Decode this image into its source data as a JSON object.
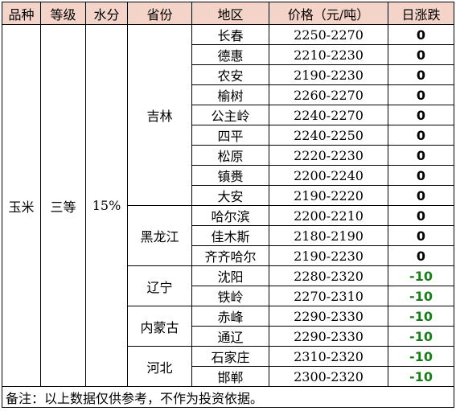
{
  "headers": [
    "品种",
    "等级",
    "水分",
    "省份",
    "地区",
    "价格（元/吨）",
    "日涨跌"
  ],
  "variety": "玉米",
  "grade": "三等",
  "moisture": "15%",
  "provinces": [
    {
      "name": "吉林",
      "rows": [
        {
          "region": "长春",
          "price": "2250-2270",
          "change": "0"
        },
        {
          "region": "德惠",
          "price": "2210-2230",
          "change": "0"
        },
        {
          "region": "农安",
          "price": "2190-2230",
          "change": "0"
        },
        {
          "region": "榆树",
          "price": "2260-2270",
          "change": "0"
        },
        {
          "region": "公主岭",
          "price": "2240-2270",
          "change": "0"
        },
        {
          "region": "四平",
          "price": "2240-2250",
          "change": "0"
        },
        {
          "region": "松原",
          "price": "2220-2230",
          "change": "0"
        },
        {
          "region": "镇赉",
          "price": "2200-2240",
          "change": "0"
        },
        {
          "region": "大安",
          "price": "2190-2220",
          "change": "0"
        }
      ]
    },
    {
      "name": "黑龙江",
      "rows": [
        {
          "region": "哈尔滨",
          "price": "2200-2210",
          "change": "0"
        },
        {
          "region": "佳木斯",
          "price": "2180-2190",
          "change": "0"
        },
        {
          "region": "齐齐哈尔",
          "price": "2190-2230",
          "change": "0"
        }
      ]
    },
    {
      "name": "辽宁",
      "rows": [
        {
          "region": "沈阳",
          "price": "2280-2320",
          "change": "-10"
        },
        {
          "region": "铁岭",
          "price": "2270-2310",
          "change": "-10"
        }
      ]
    },
    {
      "name": "内蒙古",
      "rows": [
        {
          "region": "赤峰",
          "price": "2290-2330",
          "change": "-10"
        },
        {
          "region": "通辽",
          "price": "2290-2330",
          "change": "-10"
        }
      ]
    },
    {
      "name": "河北",
      "rows": [
        {
          "region": "石家庄",
          "price": "2310-2320",
          "change": "-10"
        },
        {
          "region": "邯郸",
          "price": "2300-2320",
          "change": "-10"
        }
      ]
    }
  ],
  "note": "备注：以上数据仅供参考，不作为投资依据。",
  "colors": {
    "header_bg": "#f4d3c8",
    "negative_change": "#1f7a1f",
    "zero_change": "#000000"
  }
}
